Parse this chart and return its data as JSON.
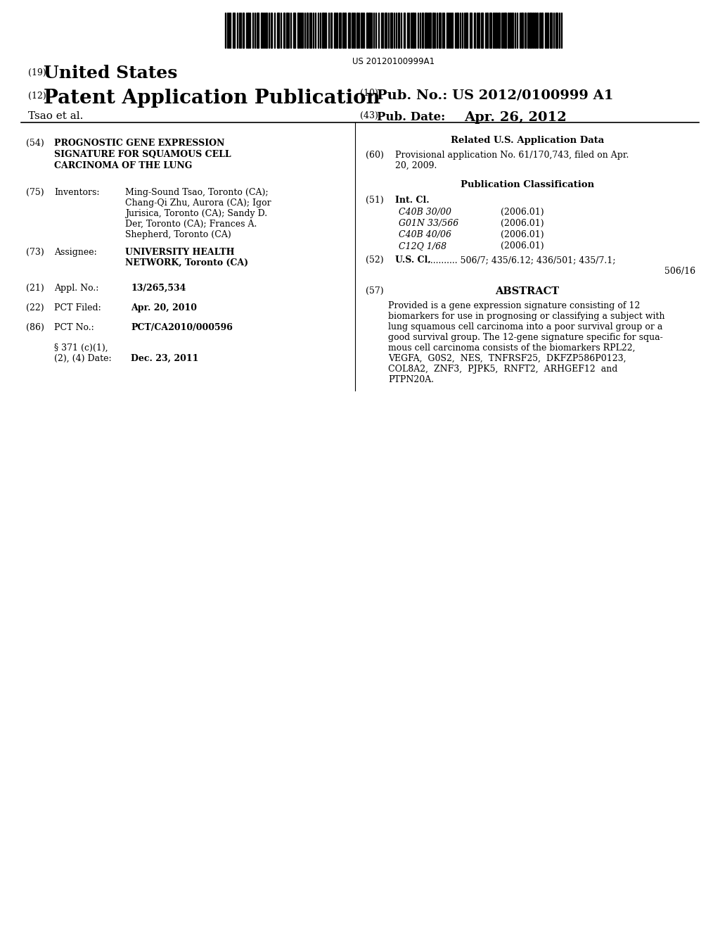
{
  "background_color": "#ffffff",
  "barcode_text": "US 20120100999A1",
  "field_54_lines": [
    "PROGNOSTIC GENE EXPRESSION",
    "SIGNATURE FOR SQUAMOUS CELL",
    "CARCINOMA OF THE LUNG"
  ],
  "field_75_inv_lines": [
    "Ming-Sound Tsao, Toronto (CA);",
    "Chang-Qi Zhu, Aurora (CA); Igor",
    "Jurisica, Toronto (CA); Sandy D.",
    "Der, Toronto (CA); Frances A.",
    "Shepherd, Toronto (CA)"
  ],
  "field_73_lines": [
    "UNIVERSITY HEALTH",
    "NETWORK, Toronto (CA)"
  ],
  "field_21_text": "13/265,534",
  "field_22_text": "Apr. 20, 2010",
  "field_86_text": "PCT/CA2010/000596",
  "field_86b_lines": [
    "§ 371 (c)(1),",
    "(2), (4) Date:"
  ],
  "field_86b_text": "Dec. 23, 2011",
  "related_header": "Related U.S. Application Data",
  "field_60_lines": [
    "Provisional application No. 61/170,743, filed on Apr.",
    "20, 2009."
  ],
  "pub_class_header": "Publication Classification",
  "field_51_items": [
    [
      "C40B 30/00",
      "(2006.01)"
    ],
    [
      "G01N 33/566",
      "(2006.01)"
    ],
    [
      "C40B 40/06",
      "(2006.01)"
    ],
    [
      "C12Q 1/68",
      "(2006.01)"
    ]
  ],
  "field_52_dots": "...........",
  "field_52_nums": " 506/7; 435/6.12; 436/501; 435/7.1;",
  "field_52_line2": "506/16",
  "field_57_label": "ABSTRACT",
  "abstract_lines": [
    "Provided is a gene expression signature consisting of 12",
    "biomarkers for use in prognosing or classifying a subject with",
    "lung squamous cell carcinoma into a poor survival group or a",
    "good survival group. The 12-gene signature specific for squa-",
    "mous cell carcinoma consists of the biomarkers RPL22,",
    "VEGFA,  G0S2,  NES,  TNFRSF25,  DKFZP586P0123,",
    "COL8A2,  ZNF3,  PJPK5,  RNFT2,  ARHGEF12  and",
    "PTPN20A."
  ]
}
